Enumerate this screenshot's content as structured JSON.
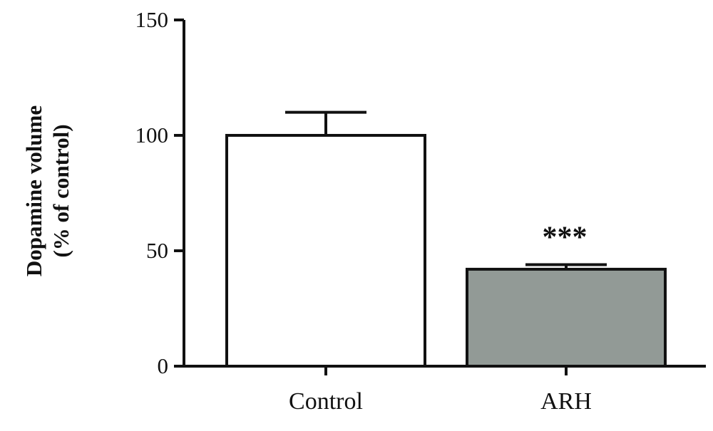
{
  "chart_data": {
    "type": "bar",
    "categories": [
      "Control",
      "ARH"
    ],
    "values": [
      100,
      42
    ],
    "errors": [
      10,
      2
    ],
    "bar_colors": [
      "#ffffff",
      "#929a96"
    ],
    "annotations": [
      "",
      "***"
    ],
    "ylabel_lines": [
      "Dopamine volume",
      "(% of control)"
    ],
    "xlabel": "",
    "ylim": [
      0,
      150
    ],
    "yticks": [
      0,
      50,
      100,
      150
    ],
    "grid": false,
    "legend": "none"
  }
}
